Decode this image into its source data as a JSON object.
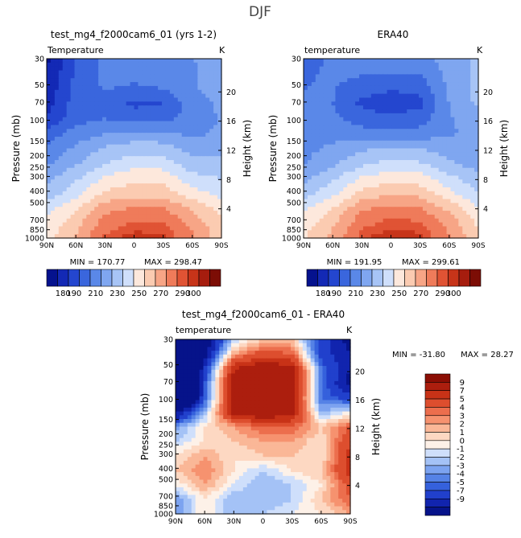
{
  "suptitle": "DJF",
  "panels": [
    {
      "title": "test_mg4_f2000cam6_01 (yrs 1-2)",
      "variable": "Temperature",
      "units": "K",
      "min_text": "MIN = 170.77",
      "max_text": "MAX = 298.47",
      "field": "model"
    },
    {
      "title": "ERA40",
      "variable": "temperature",
      "units": "K",
      "min_text": "MIN = 191.95",
      "max_text": "MAX = 299.61",
      "field": "obs"
    },
    {
      "title": "test_mg4_f2000cam6_01 - ERA40",
      "variable": "temperature",
      "units": "K",
      "min_text": "MIN = -31.80",
      "max_text": "MAX =  28.27",
      "field": "diff"
    }
  ],
  "axes": {
    "ylabel": "Pressure (mb)",
    "y2label": "Height (km)",
    "pressure_ticks": [
      "30",
      "50",
      "70",
      "100",
      "150",
      "200",
      "250",
      "300",
      "400",
      "500",
      "700",
      "850",
      "1000"
    ],
    "height_ticks": [
      "20",
      "16",
      "12",
      "8",
      "4"
    ],
    "lat_ticks": [
      "90N",
      "60N",
      "30N",
      "0",
      "30S",
      "60S",
      "90S"
    ]
  },
  "colorbars": {
    "abs": {
      "labels": [
        "180",
        "190",
        "210",
        "230",
        "250",
        "270",
        "290",
        "300"
      ],
      "colors": [
        "#05128e",
        "#1329b5",
        "#2446cf",
        "#3a66dd",
        "#5a88e8",
        "#7fa6f0",
        "#a7c4f6",
        "#cfdffb",
        "#fde8dc",
        "#fbcbb1",
        "#f7a586",
        "#ef7b5a",
        "#e05334",
        "#c73419",
        "#a61d0e",
        "#7c0d05"
      ]
    },
    "diff": {
      "labels": [
        "9",
        "7",
        "5",
        "4",
        "3",
        "2",
        "1",
        "0",
        "-1",
        "-2",
        "-3",
        "-4",
        "-5",
        "-7",
        "-9"
      ],
      "colors": [
        "#8b0e04",
        "#ac1e0e",
        "#c83217",
        "#dd4e2e",
        "#ec6e4d",
        "#f6926f",
        "#fab797",
        "#fdd8c2",
        "#fdf1e8",
        "#cfdffb",
        "#a4c2f6",
        "#7ca3f0",
        "#5582e6",
        "#3561dc",
        "#2140cc",
        "#1124ae",
        "#06138a"
      ]
    }
  },
  "chart_data": [
    {
      "type": "heatmap",
      "title": "test_mg4_f2000cam6_01 (yrs 1-2)",
      "variable": "Temperature",
      "units": "K",
      "x": [
        "90N",
        "60N",
        "30N",
        "0",
        "30S",
        "60S",
        "90S"
      ],
      "y": [
        30,
        50,
        70,
        100,
        150,
        200,
        250,
        300,
        400,
        500,
        700,
        850,
        1000
      ],
      "values": [
        [
          178,
          200,
          212,
          215,
          218,
          220,
          222
        ],
        [
          180,
          202,
          212,
          214,
          216,
          219,
          224
        ],
        [
          182,
          204,
          211,
          208,
          210,
          219,
          225
        ],
        [
          186,
          205,
          205,
          198,
          200,
          215,
          222
        ],
        [
          190,
          206,
          210,
          205,
          207,
          214,
          221
        ],
        [
          205,
          214,
          220,
          222,
          222,
          217,
          222
        ],
        [
          212,
          222,
          231,
          236,
          235,
          226,
          227
        ],
        [
          218,
          229,
          239,
          246,
          245,
          233,
          232
        ],
        [
          227,
          238,
          251,
          258,
          257,
          244,
          240
        ],
        [
          234,
          246,
          262,
          266,
          265,
          254,
          247
        ],
        [
          246,
          258,
          276,
          281,
          280,
          268,
          256
        ],
        [
          252,
          266,
          285,
          291,
          290,
          277,
          262
        ],
        [
          256,
          271,
          292,
          298,
          297,
          282,
          264
        ]
      ],
      "zmin": 170.77,
      "zmax": 298.47
    },
    {
      "type": "heatmap",
      "title": "ERA40",
      "variable": "temperature",
      "units": "K",
      "x": [
        "90N",
        "60N",
        "30N",
        "0",
        "30S",
        "60S",
        "90S"
      ],
      "y": [
        30,
        50,
        70,
        100,
        150,
        200,
        250,
        300,
        400,
        500,
        700,
        850,
        1000
      ],
      "values": [
        [
          205,
          212,
          215,
          216,
          216,
          224,
          232
        ],
        [
          208,
          212,
          211,
          210,
          211,
          223,
          233
        ],
        [
          210,
          211,
          204,
          201,
          203,
          222,
          234
        ],
        [
          212,
          210,
          198,
          194,
          197,
          220,
          232
        ],
        [
          213,
          212,
          205,
          202,
          205,
          219,
          226
        ],
        [
          215,
          216,
          214,
          212,
          214,
          219,
          222
        ],
        [
          217,
          222,
          228,
          232,
          230,
          224,
          222
        ],
        [
          219,
          228,
          237,
          243,
          241,
          232,
          225
        ],
        [
          227,
          238,
          251,
          257,
          255,
          243,
          233
        ],
        [
          235,
          247,
          263,
          268,
          266,
          253,
          240
        ],
        [
          248,
          260,
          278,
          283,
          281,
          267,
          251
        ],
        [
          255,
          268,
          287,
          293,
          291,
          276,
          258
        ],
        [
          259,
          273,
          294,
          299,
          297,
          281,
          261
        ]
      ],
      "zmin": 191.95,
      "zmax": 299.61
    },
    {
      "type": "heatmap",
      "title": "test_mg4_f2000cam6_01 - ERA40",
      "variable": "temperature",
      "units": "K",
      "x": [
        "90N",
        "60N",
        "30N",
        "0",
        "30S",
        "60S",
        "90S"
      ],
      "y": [
        30,
        50,
        70,
        100,
        150,
        200,
        250,
        300,
        400,
        500,
        700,
        850,
        1000
      ],
      "values": [
        [
          -27,
          -12,
          -1,
          2,
          2,
          -6,
          -10
        ],
        [
          -28,
          -10,
          3,
          6,
          5,
          -6,
          -9
        ],
        [
          -28,
          -7,
          9,
          11,
          10,
          -4,
          -9
        ],
        [
          -26,
          -5,
          10,
          12,
          11,
          -4,
          -10
        ],
        [
          -23,
          -5,
          10,
          10,
          10,
          -4,
          -6
        ],
        [
          -10,
          -2,
          10,
          12,
          10,
          -2,
          0
        ],
        [
          -3,
          1,
          3,
          5,
          5,
          2,
          5
        ],
        [
          -1,
          1,
          2,
          3,
          3,
          1,
          7
        ],
        [
          1,
          3,
          1,
          2,
          2,
          1,
          8
        ],
        [
          2,
          4,
          1,
          -1,
          1,
          2,
          8
        ],
        [
          0,
          3,
          0,
          -2,
          -1,
          1,
          6
        ],
        [
          -3,
          1,
          -2,
          -2,
          -1,
          2,
          5
        ],
        [
          -3,
          1,
          -2,
          -1,
          0,
          1,
          3
        ]
      ],
      "zmin": -31.8,
      "zmax": 28.27
    }
  ]
}
